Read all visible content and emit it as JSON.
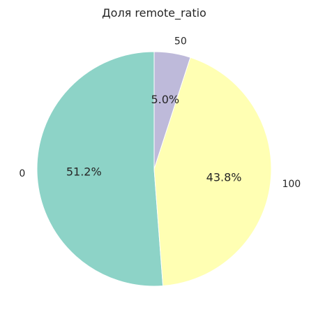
{
  "chart_data": {
    "type": "pie",
    "title": "Доля remote_ratio",
    "categories": [
      "0",
      "100",
      "50"
    ],
    "values": [
      51.2,
      43.8,
      5.0
    ],
    "percent_labels": [
      "51.2%",
      "43.8%",
      "5.0%"
    ],
    "colors": [
      "#8dd3c7",
      "#ffffb3",
      "#bebada"
    ],
    "start_angle": "90° (top)",
    "direction": "counterclockwise",
    "legend": "none"
  }
}
